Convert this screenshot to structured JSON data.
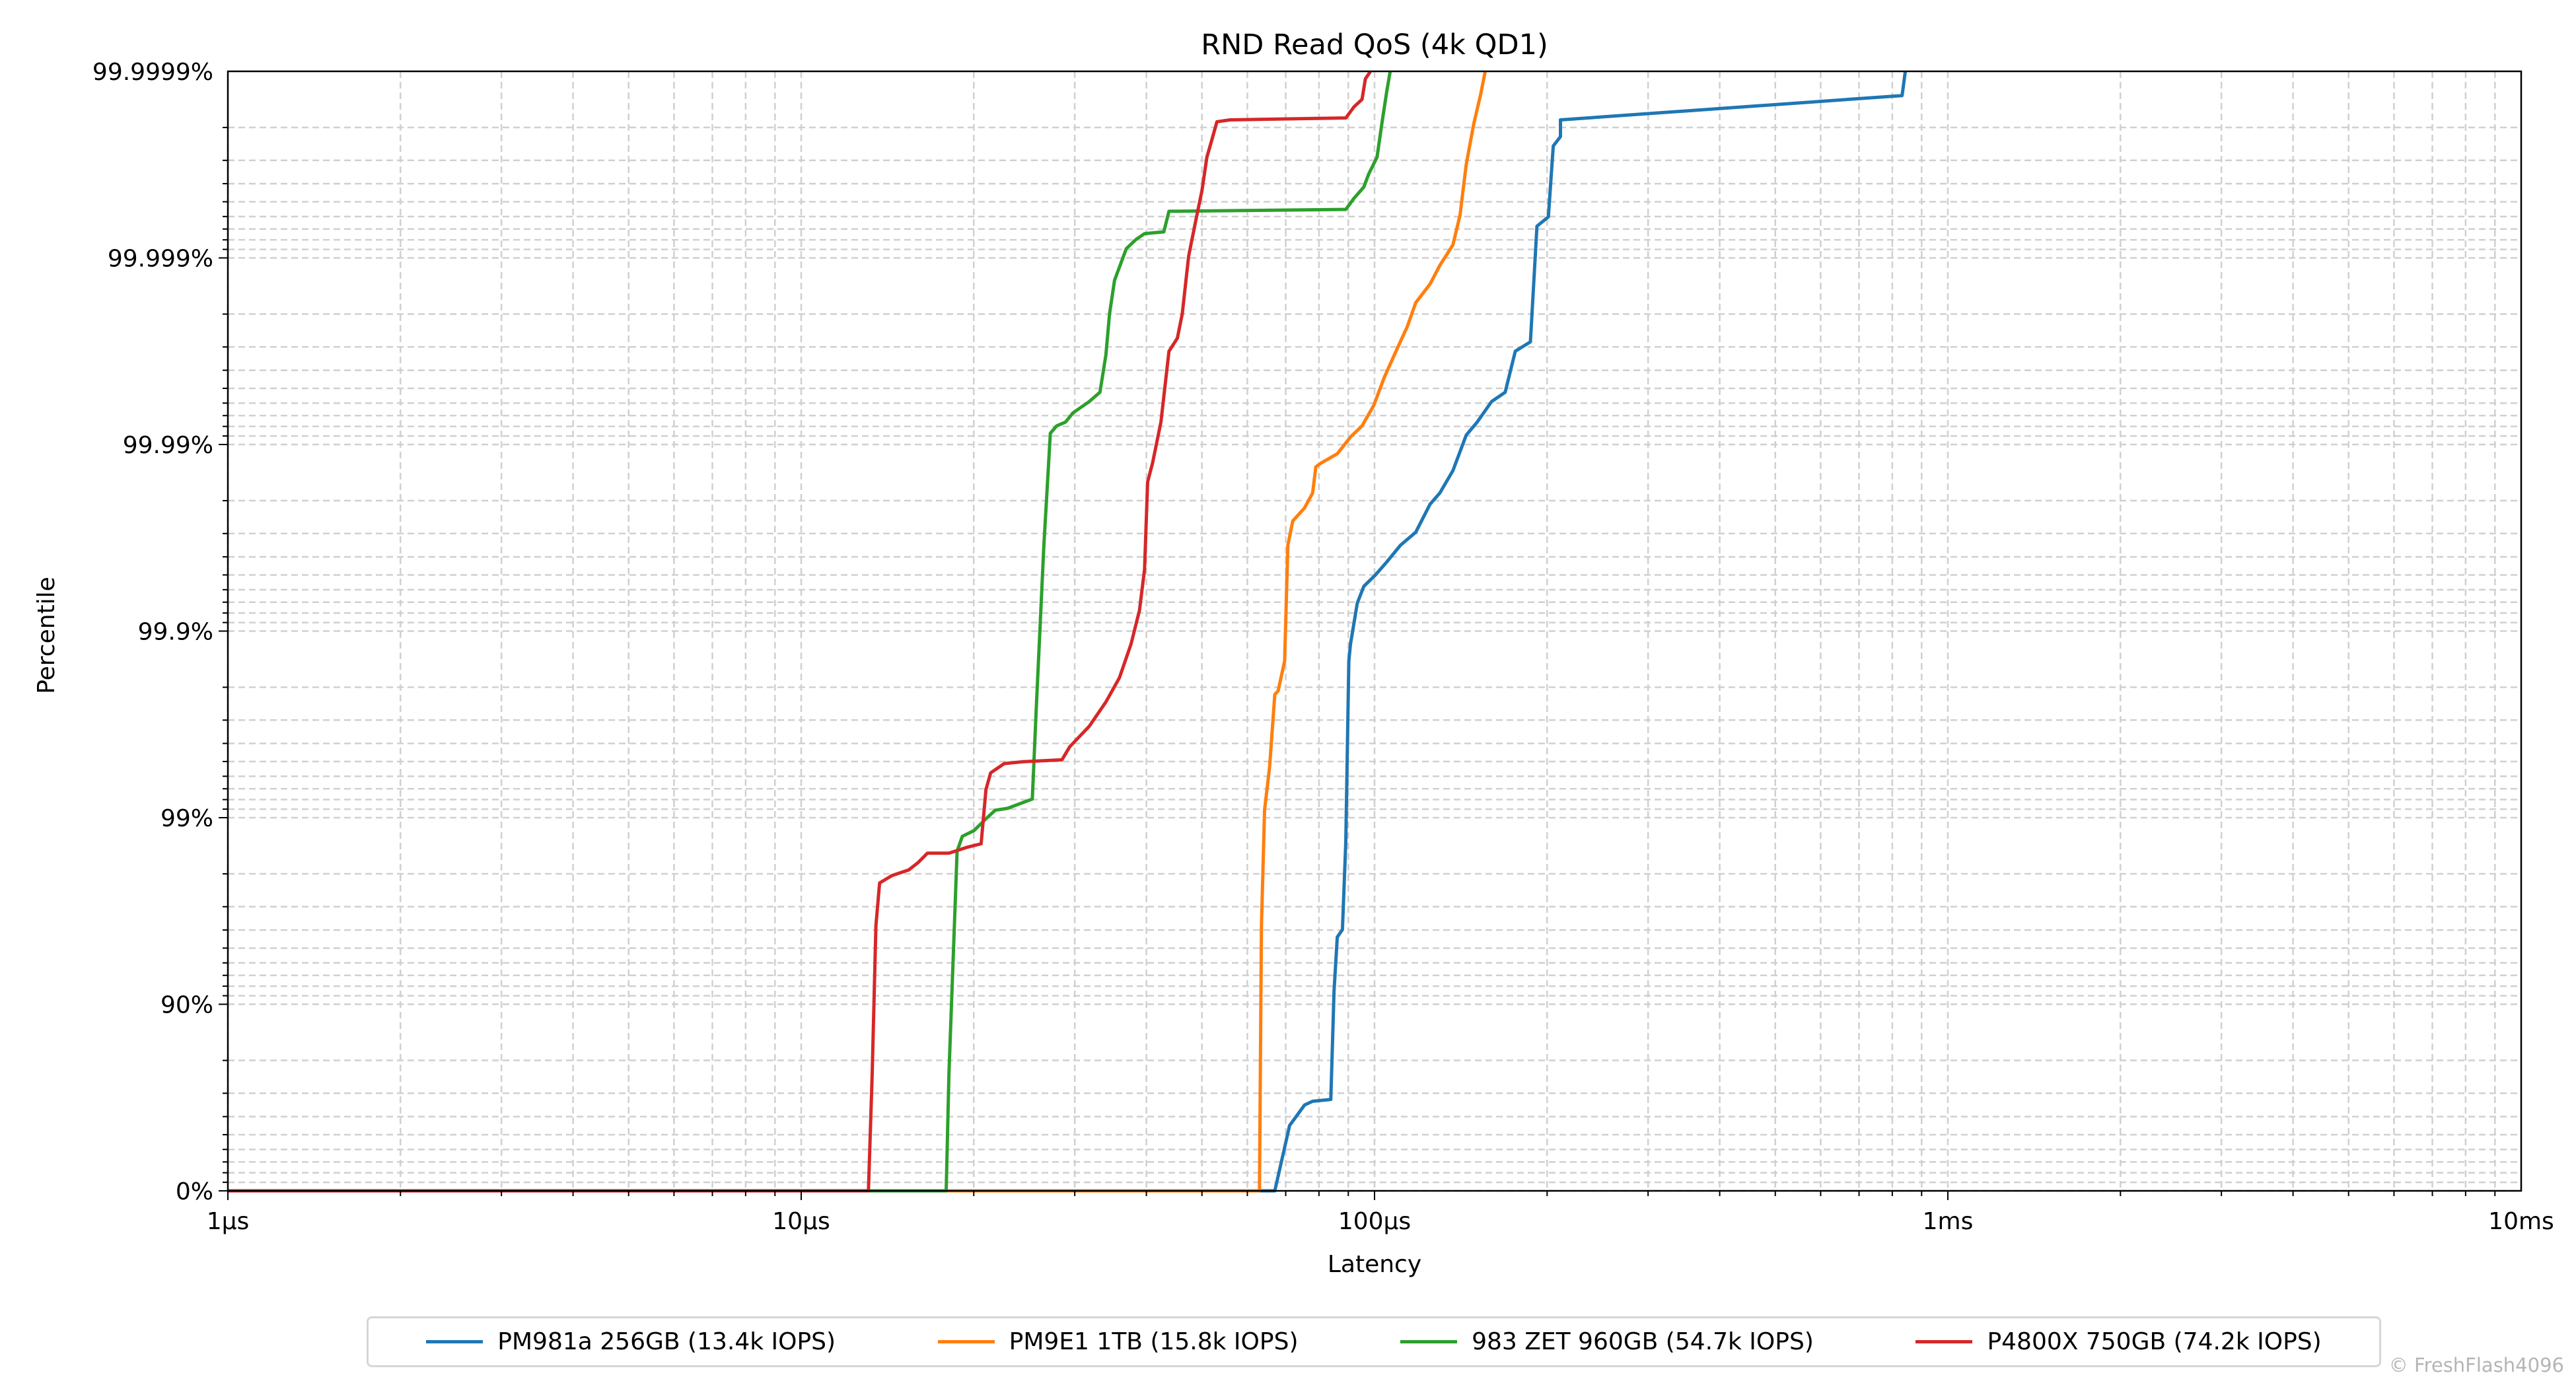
{
  "chart_data": {
    "type": "line",
    "title": "RND Read QoS (4k QD1)",
    "xlabel": "Latency",
    "ylabel": "Percentile",
    "x_scale": "log",
    "x_unit": "microseconds",
    "xlim": [
      1,
      10000
    ],
    "xticks": [
      {
        "value": 1,
        "label": "1µs"
      },
      {
        "value": 10,
        "label": "10µs"
      },
      {
        "value": 100,
        "label": "100µs"
      },
      {
        "value": 1000,
        "label": "1ms"
      },
      {
        "value": 10000,
        "label": "10ms"
      }
    ],
    "y_scale": "nines",
    "y_unit": "nines of percentile: percentile = 100*(1-10^-y)",
    "ylim": [
      0,
      6
    ],
    "yticks": [
      {
        "value": 0,
        "label": "0%"
      },
      {
        "value": 1,
        "label": "90%"
      },
      {
        "value": 2,
        "label": "99%"
      },
      {
        "value": 3,
        "label": "99.9%"
      },
      {
        "value": 4,
        "label": "99.99%"
      },
      {
        "value": 5,
        "label": "99.999%"
      },
      {
        "value": 6,
        "label": "99.9999%"
      }
    ],
    "grid": true,
    "legend_position": "bottom-center",
    "series": [
      {
        "name": "PM981a 256GB (13.4k IOPS)",
        "color": "#1f77b4",
        "points": [
          [
            1,
            0
          ],
          [
            67,
            0
          ],
          [
            69.2,
            0.19
          ],
          [
            71.1,
            0.35
          ],
          [
            75.5,
            0.46
          ],
          [
            78,
            0.48
          ],
          [
            83.9,
            0.49
          ],
          [
            85,
            1.07
          ],
          [
            86.1,
            1.36
          ],
          [
            87.9,
            1.4
          ],
          [
            89.1,
            1.87
          ],
          [
            90.2,
            2.84
          ],
          [
            90.8,
            2.93
          ],
          [
            93.3,
            3.15
          ],
          [
            95.8,
            3.24
          ],
          [
            100.3,
            3.3
          ],
          [
            105,
            3.37
          ],
          [
            111,
            3.46
          ],
          [
            118,
            3.53
          ],
          [
            125,
            3.68
          ],
          [
            130,
            3.74
          ],
          [
            137,
            3.86
          ],
          [
            144.5,
            4.05
          ],
          [
            151,
            4.12
          ],
          [
            160,
            4.23
          ],
          [
            169,
            4.28
          ],
          [
            176,
            4.5
          ],
          [
            187,
            4.55
          ],
          [
            192,
            5.17
          ],
          [
            201,
            5.22
          ],
          [
            205,
            5.6
          ],
          [
            211,
            5.65
          ],
          [
            211,
            5.74
          ],
          [
            832,
            5.87
          ],
          [
            843,
            6.0
          ]
        ]
      },
      {
        "name": "PM9E1 1TB (15.8k IOPS)",
        "color": "#ff7f0e",
        "points": [
          [
            1,
            0
          ],
          [
            63,
            0
          ],
          [
            63.5,
            1.42
          ],
          [
            64.3,
            2.04
          ],
          [
            65.6,
            2.27
          ],
          [
            67,
            2.66
          ],
          [
            67.9,
            2.68
          ],
          [
            69.7,
            2.84
          ],
          [
            70.6,
            3.46
          ],
          [
            72,
            3.59
          ],
          [
            75.5,
            3.66
          ],
          [
            78,
            3.74
          ],
          [
            79,
            3.88
          ],
          [
            80.6,
            3.9
          ],
          [
            86.1,
            3.95
          ],
          [
            90.8,
            4.04
          ],
          [
            95.1,
            4.1
          ],
          [
            99.7,
            4.21
          ],
          [
            104,
            4.36
          ],
          [
            109,
            4.5
          ],
          [
            114,
            4.63
          ],
          [
            118,
            4.76
          ],
          [
            125,
            4.86
          ],
          [
            130,
            4.96
          ],
          [
            137,
            5.07
          ],
          [
            141,
            5.23
          ],
          [
            144.5,
            5.5
          ],
          [
            149,
            5.72
          ],
          [
            153,
            5.87
          ],
          [
            156,
            6.0
          ]
        ]
      },
      {
        "name": "983 ZET 960GB (54.7k IOPS)",
        "color": "#2ca02c",
        "points": [
          [
            1,
            0
          ],
          [
            17.9,
            0
          ],
          [
            18.1,
            0.63
          ],
          [
            18.5,
            1.42
          ],
          [
            18.7,
            1.82
          ],
          [
            19.1,
            1.9
          ],
          [
            20.0,
            1.93
          ],
          [
            21.1,
            2.0
          ],
          [
            21.8,
            2.04
          ],
          [
            22.9,
            2.05
          ],
          [
            25.3,
            2.1
          ],
          [
            25.7,
            2.58
          ],
          [
            26.5,
            3.46
          ],
          [
            27.2,
            4.06
          ],
          [
            27.9,
            4.1
          ],
          [
            28.9,
            4.12
          ],
          [
            29.8,
            4.17
          ],
          [
            31.8,
            4.23
          ],
          [
            33.2,
            4.28
          ],
          [
            34.0,
            4.48
          ],
          [
            34.5,
            4.7
          ],
          [
            35.2,
            4.88
          ],
          [
            36.9,
            5.05
          ],
          [
            38.4,
            5.1
          ],
          [
            39.7,
            5.13
          ],
          [
            42.9,
            5.14
          ],
          [
            43.8,
            5.25
          ],
          [
            89.1,
            5.26
          ],
          [
            92.1,
            5.32
          ],
          [
            95.8,
            5.38
          ],
          [
            97.7,
            5.45
          ],
          [
            101,
            5.54
          ],
          [
            103,
            5.72
          ],
          [
            105,
            5.89
          ],
          [
            106.5,
            6.0
          ]
        ]
      },
      {
        "name": "P4800X 750GB (74.2k IOPS)",
        "color": "#d62728",
        "points": [
          [
            1,
            0
          ],
          [
            13.1,
            0
          ],
          [
            13.3,
            0.63
          ],
          [
            13.5,
            1.42
          ],
          [
            13.7,
            1.65
          ],
          [
            14.4,
            1.69
          ],
          [
            15.4,
            1.72
          ],
          [
            16.0,
            1.76
          ],
          [
            16.6,
            1.81
          ],
          [
            18.1,
            1.81
          ],
          [
            19.4,
            1.84
          ],
          [
            20.6,
            1.86
          ],
          [
            21.0,
            2.15
          ],
          [
            21.4,
            2.24
          ],
          [
            22.6,
            2.29
          ],
          [
            24.4,
            2.3
          ],
          [
            28.5,
            2.31
          ],
          [
            29.4,
            2.38
          ],
          [
            31.8,
            2.49
          ],
          [
            34.0,
            2.62
          ],
          [
            35.9,
            2.75
          ],
          [
            37.6,
            2.93
          ],
          [
            38.9,
            3.11
          ],
          [
            39.7,
            3.33
          ],
          [
            40.2,
            3.8
          ],
          [
            41.0,
            3.9
          ],
          [
            42.4,
            4.12
          ],
          [
            43.8,
            4.5
          ],
          [
            45.3,
            4.57
          ],
          [
            46.2,
            4.7
          ],
          [
            47.4,
            5.01
          ],
          [
            48.7,
            5.19
          ],
          [
            50.0,
            5.36
          ],
          [
            51.0,
            5.54
          ],
          [
            52.0,
            5.63
          ],
          [
            53.1,
            5.73
          ],
          [
            56.0,
            5.74
          ],
          [
            89.1,
            5.75
          ],
          [
            92.1,
            5.81
          ],
          [
            95.1,
            5.85
          ],
          [
            96.4,
            5.96
          ],
          [
            98.4,
            6.0
          ]
        ]
      }
    ]
  },
  "watermark": "© FreshFlash4096"
}
